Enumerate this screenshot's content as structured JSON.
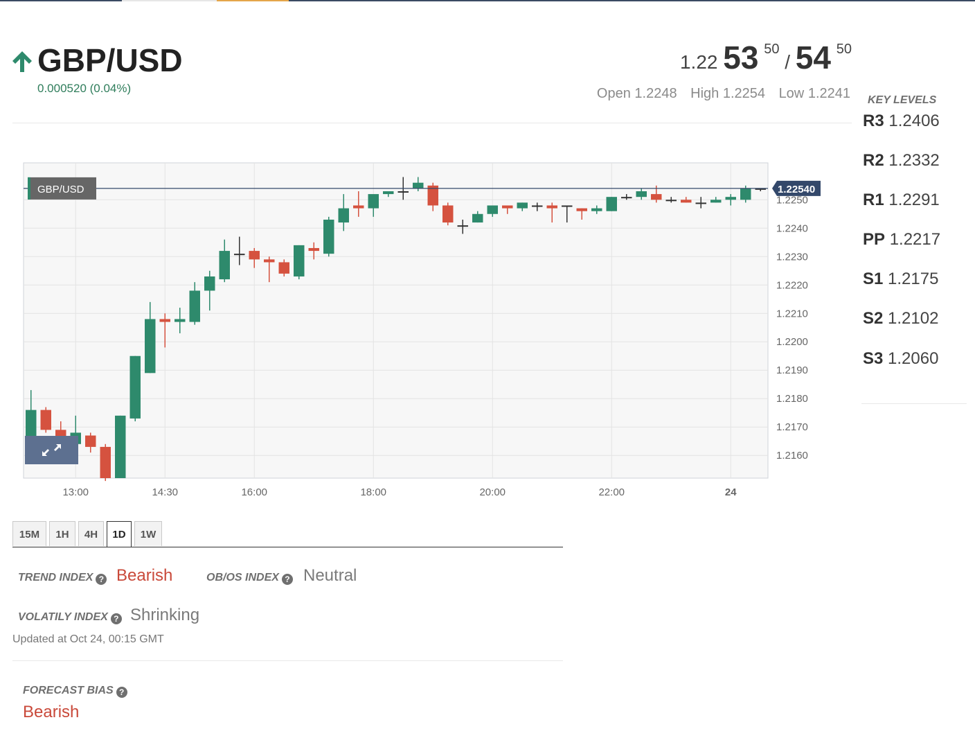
{
  "header": {
    "pair": "GBP/USD",
    "direction_icon": "arrow-up-icon",
    "change": "0.000520 (0.04%)",
    "bid_prefix": "1.22",
    "bid_big": "53",
    "bid_sup": "50",
    "separator": "/",
    "ask_big": "54",
    "ask_sup": "50",
    "open_label": "Open",
    "open_value": "1.2248",
    "high_label": "High",
    "high_value": "1.2254",
    "low_label": "Low",
    "low_value": "1.2241"
  },
  "colors": {
    "up": "#2e8a6c",
    "down": "#d5523f",
    "price_line": "#33486a",
    "accent": "#e4a64a",
    "bearish_text": "#c9493a"
  },
  "chart_data": {
    "type": "candlestick",
    "series_label": "GBP/USD",
    "last_price_label": "1.22540",
    "last_price": 1.2254,
    "ylim": [
      1.2152,
      1.2263
    ],
    "y_ticks": [
      "1.2250",
      "1.2240",
      "1.2230",
      "1.2220",
      "1.2210",
      "1.2200",
      "1.2190",
      "1.2180",
      "1.2170",
      "1.2160"
    ],
    "x_ticks": [
      "13:00",
      "14:30",
      "16:00",
      "18:00",
      "20:00",
      "22:00",
      "24"
    ],
    "x_tick_slots": [
      3,
      9,
      15,
      23,
      31,
      39,
      47
    ],
    "candles": [
      {
        "o": 1.2162,
        "h": 1.2183,
        "l": 1.2162,
        "c": 1.2176
      },
      {
        "o": 1.2176,
        "h": 1.2177,
        "l": 1.2168,
        "c": 1.2169
      },
      {
        "o": 1.2169,
        "h": 1.2172,
        "l": 1.2163,
        "c": 1.2165
      },
      {
        "o": 1.2164,
        "h": 1.2174,
        "l": 1.2161,
        "c": 1.2168
      },
      {
        "o": 1.2167,
        "h": 1.2168,
        "l": 1.2161,
        "c": 1.2163
      },
      {
        "o": 1.2163,
        "h": 1.2164,
        "l": 1.2151,
        "c": 1.2152
      },
      {
        "o": 1.2152,
        "h": 1.2174,
        "l": 1.2152,
        "c": 1.2174
      },
      {
        "o": 1.2173,
        "h": 1.2195,
        "l": 1.2172,
        "c": 1.2195
      },
      {
        "o": 1.2189,
        "h": 1.2214,
        "l": 1.2189,
        "c": 1.2208
      },
      {
        "o": 1.2208,
        "h": 1.221,
        "l": 1.2198,
        "c": 1.2207
      },
      {
        "o": 1.2207,
        "h": 1.2212,
        "l": 1.2203,
        "c": 1.2208
      },
      {
        "o": 1.2207,
        "h": 1.2221,
        "l": 1.2206,
        "c": 1.2218
      },
      {
        "o": 1.2218,
        "h": 1.2225,
        "l": 1.2211,
        "c": 1.2223
      },
      {
        "o": 1.2222,
        "h": 1.2236,
        "l": 1.2221,
        "c": 1.2232
      },
      {
        "o": 1.2231,
        "h": 1.2237,
        "l": 1.2227,
        "c": 1.2231
      },
      {
        "o": 1.2232,
        "h": 1.2233,
        "l": 1.2226,
        "c": 1.2229
      },
      {
        "o": 1.2229,
        "h": 1.223,
        "l": 1.2221,
        "c": 1.2228
      },
      {
        "o": 1.2228,
        "h": 1.2229,
        "l": 1.2223,
        "c": 1.2224
      },
      {
        "o": 1.2223,
        "h": 1.2234,
        "l": 1.2222,
        "c": 1.2234
      },
      {
        "o": 1.2233,
        "h": 1.2235,
        "l": 1.2229,
        "c": 1.2232
      },
      {
        "o": 1.2231,
        "h": 1.2244,
        "l": 1.223,
        "c": 1.2243
      },
      {
        "o": 1.2242,
        "h": 1.2252,
        "l": 1.2239,
        "c": 1.2247
      },
      {
        "o": 1.2248,
        "h": 1.2253,
        "l": 1.2244,
        "c": 1.2247
      },
      {
        "o": 1.2247,
        "h": 1.2251,
        "l": 1.2244,
        "c": 1.2252
      },
      {
        "o": 1.2252,
        "h": 1.2253,
        "l": 1.2251,
        "c": 1.2253
      },
      {
        "o": 1.2253,
        "h": 1.2258,
        "l": 1.225,
        "c": 1.2253
      },
      {
        "o": 1.2254,
        "h": 1.2258,
        "l": 1.2253,
        "c": 1.2256
      },
      {
        "o": 1.2255,
        "h": 1.2256,
        "l": 1.2246,
        "c": 1.2248
      },
      {
        "o": 1.2248,
        "h": 1.2249,
        "l": 1.2241,
        "c": 1.2242
      },
      {
        "o": 1.2241,
        "h": 1.2243,
        "l": 1.2238,
        "c": 1.2241
      },
      {
        "o": 1.2242,
        "h": 1.2246,
        "l": 1.2242,
        "c": 1.2245
      },
      {
        "o": 1.2245,
        "h": 1.2248,
        "l": 1.2244,
        "c": 1.2248
      },
      {
        "o": 1.2248,
        "h": 1.2248,
        "l": 1.2245,
        "c": 1.2247
      },
      {
        "o": 1.2247,
        "h": 1.2249,
        "l": 1.2246,
        "c": 1.2249
      },
      {
        "o": 1.2248,
        "h": 1.2249,
        "l": 1.2246,
        "c": 1.2248
      },
      {
        "o": 1.2248,
        "h": 1.2249,
        "l": 1.2242,
        "c": 1.2247
      },
      {
        "o": 1.2248,
        "h": 1.2248,
        "l": 1.2242,
        "c": 1.2248
      },
      {
        "o": 1.2247,
        "h": 1.2247,
        "l": 1.2243,
        "c": 1.2246
      },
      {
        "o": 1.2246,
        "h": 1.2248,
        "l": 1.2245,
        "c": 1.2247
      },
      {
        "o": 1.2246,
        "h": 1.2251,
        "l": 1.2246,
        "c": 1.2251
      },
      {
        "o": 1.2251,
        "h": 1.2252,
        "l": 1.225,
        "c": 1.2251
      },
      {
        "o": 1.2251,
        "h": 1.2254,
        "l": 1.225,
        "c": 1.2253
      },
      {
        "o": 1.2252,
        "h": 1.2255,
        "l": 1.2249,
        "c": 1.225
      },
      {
        "o": 1.225,
        "h": 1.2251,
        "l": 1.2249,
        "c": 1.225
      },
      {
        "o": 1.225,
        "h": 1.2251,
        "l": 1.2249,
        "c": 1.2249
      },
      {
        "o": 1.2249,
        "h": 1.2251,
        "l": 1.2247,
        "c": 1.2249
      },
      {
        "o": 1.2249,
        "h": 1.2251,
        "l": 1.2249,
        "c": 1.225
      },
      {
        "o": 1.225,
        "h": 1.2252,
        "l": 1.2248,
        "c": 1.2251
      },
      {
        "o": 1.225,
        "h": 1.2255,
        "l": 1.2249,
        "c": 1.2254
      },
      {
        "o": 1.2254,
        "h": 1.2254,
        "l": 1.2253,
        "c": 1.2254
      }
    ]
  },
  "timeframes": [
    "15M",
    "1H",
    "4H",
    "1D",
    "1W"
  ],
  "active_timeframe": "1D",
  "indicators": {
    "trend_label": "TREND INDEX",
    "trend_value": "Bearish",
    "obos_label": "OB/OS INDEX",
    "obos_value": "Neutral",
    "volatility_label": "VOLATILY INDEX",
    "volatility_value": "Shrinking",
    "updated": "Updated at Oct 24, 00:15 GMT"
  },
  "forecast": {
    "label": "FORECAST BIAS",
    "value": "Bearish"
  },
  "key_levels": {
    "title": "KEY LEVELS",
    "levels": [
      {
        "name": "R3",
        "value": "1.2406"
      },
      {
        "name": "R2",
        "value": "1.2332"
      },
      {
        "name": "R1",
        "value": "1.2291"
      },
      {
        "name": "PP",
        "value": "1.2217"
      },
      {
        "name": "S1",
        "value": "1.2175"
      },
      {
        "name": "S2",
        "value": "1.2102"
      },
      {
        "name": "S3",
        "value": "1.2060"
      }
    ]
  },
  "icons": {
    "expand": "expand-icon",
    "help": "question-circle-icon"
  }
}
